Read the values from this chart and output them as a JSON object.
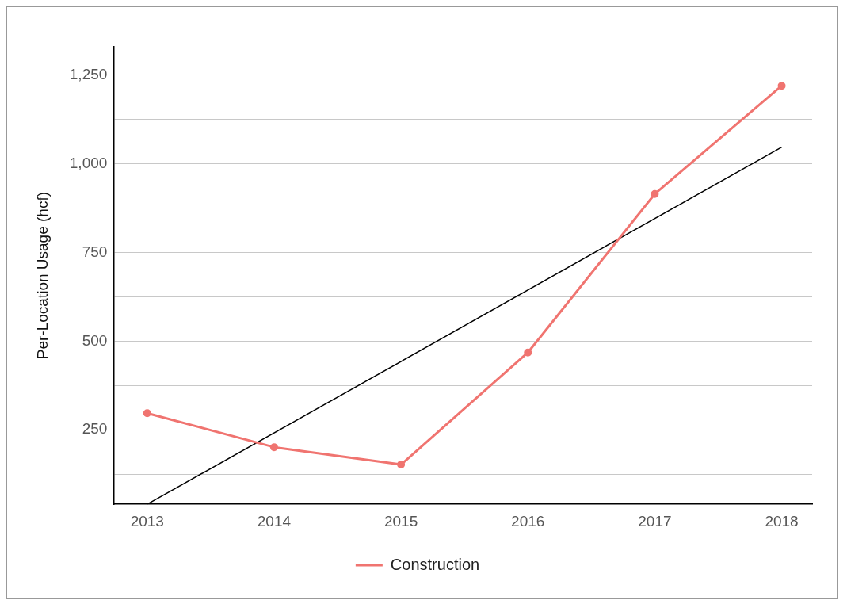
{
  "chart_data": {
    "type": "line",
    "ylabel": "Per-Location Usage (hcf)",
    "x": [
      2013,
      2014,
      2015,
      2016,
      2017,
      2018
    ],
    "series": [
      {
        "name": "Construction",
        "color": "#f07470",
        "values": [
          297,
          201,
          152,
          468,
          915,
          1220
        ]
      },
      {
        "type": "line",
        "color": "#000000",
        "x": [
          2013,
          2018
        ],
        "values": [
          40,
          1047
        ],
        "marker": "none"
      }
    ],
    "xlim": [
      2012.735,
      2018.24
    ],
    "xticks": [
      2013,
      2014,
      2015,
      2016,
      2017,
      2018
    ],
    "ylim": [
      40,
      1330
    ],
    "yticks": [
      {
        "value": 125,
        "label": null
      },
      {
        "value": 250,
        "label": "250"
      },
      {
        "value": 375,
        "label": null
      },
      {
        "value": 500,
        "label": "500"
      },
      {
        "value": 625,
        "label": null
      },
      {
        "value": 750,
        "label": "750"
      },
      {
        "value": 875,
        "label": null
      },
      {
        "value": 1000,
        "label": "1,000"
      },
      {
        "value": 1125,
        "label": null
      },
      {
        "value": 1250,
        "label": "1,250"
      }
    ],
    "grid": "y",
    "legend": "bottom",
    "marker": "circle"
  }
}
